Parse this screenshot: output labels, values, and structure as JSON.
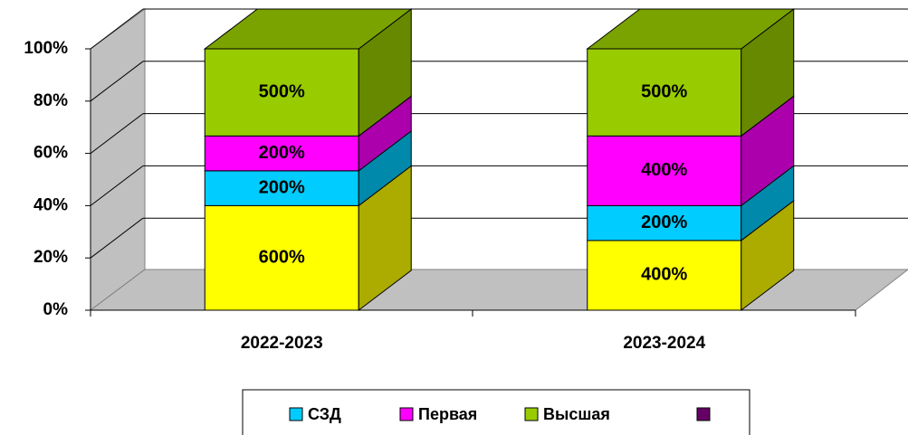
{
  "chart_data": {
    "type": "bar",
    "stacked": "percent",
    "grid": true,
    "categories": [
      "2022-2023",
      "2023-2024"
    ],
    "ylim": [
      0,
      100
    ],
    "yticks": [
      {
        "value": 0,
        "label": "0%"
      },
      {
        "value": 20,
        "label": "20%"
      },
      {
        "value": 40,
        "label": "40%"
      },
      {
        "value": 60,
        "label": "60%"
      },
      {
        "value": 80,
        "label": "80%"
      },
      {
        "value": 100,
        "label": "100%"
      }
    ],
    "series": [
      {
        "color": "#ffff00",
        "values": [
          600,
          400
        ],
        "value_labels": [
          "600%",
          "400%"
        ]
      },
      {
        "name": "СЗД",
        "color": "#00ccff",
        "values": [
          200,
          200
        ],
        "value_labels": [
          "200%",
          "200%"
        ]
      },
      {
        "name": "Первая",
        "color": "#ff00ff",
        "values": [
          200,
          400
        ],
        "value_labels": [
          "200%",
          "400%"
        ]
      },
      {
        "name": "Высшая",
        "color": "#99cc00",
        "values": [
          500,
          500
        ],
        "value_labels": [
          "500%",
          "500%"
        ]
      },
      {
        "name": null,
        "color": "#660066",
        "values": [
          null,
          null
        ]
      }
    ]
  }
}
